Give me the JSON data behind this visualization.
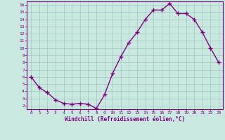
{
  "x": [
    0,
    1,
    2,
    3,
    4,
    5,
    6,
    7,
    8,
    9,
    10,
    11,
    12,
    13,
    14,
    15,
    16,
    17,
    18,
    19,
    20,
    21,
    22,
    23
  ],
  "y": [
    6.0,
    4.5,
    3.8,
    2.8,
    2.3,
    2.2,
    2.3,
    2.2,
    1.6,
    3.5,
    6.5,
    8.8,
    10.8,
    12.2,
    14.0,
    15.3,
    15.3,
    16.2,
    14.8,
    14.8,
    14.0,
    12.2,
    10.0,
    8.0
  ],
  "line_color": "#800080",
  "marker": "+",
  "marker_color": "#800080",
  "bg_color": "#c8e8e0",
  "grid_color": "#a0c8c0",
  "xlabel": "Windchill (Refroidissement éolien,°C)",
  "xlabel_color": "#800080",
  "tick_color": "#800080",
  "xlim": [
    -0.5,
    23.5
  ],
  "ylim": [
    1.5,
    16.5
  ],
  "yticks": [
    2,
    3,
    4,
    5,
    6,
    7,
    8,
    9,
    10,
    11,
    12,
    13,
    14,
    15,
    16
  ],
  "xticks": [
    0,
    1,
    2,
    3,
    4,
    5,
    6,
    7,
    8,
    9,
    10,
    11,
    12,
    13,
    14,
    15,
    16,
    17,
    18,
    19,
    20,
    21,
    22,
    23
  ],
  "line_width": 1.0,
  "marker_size": 5
}
